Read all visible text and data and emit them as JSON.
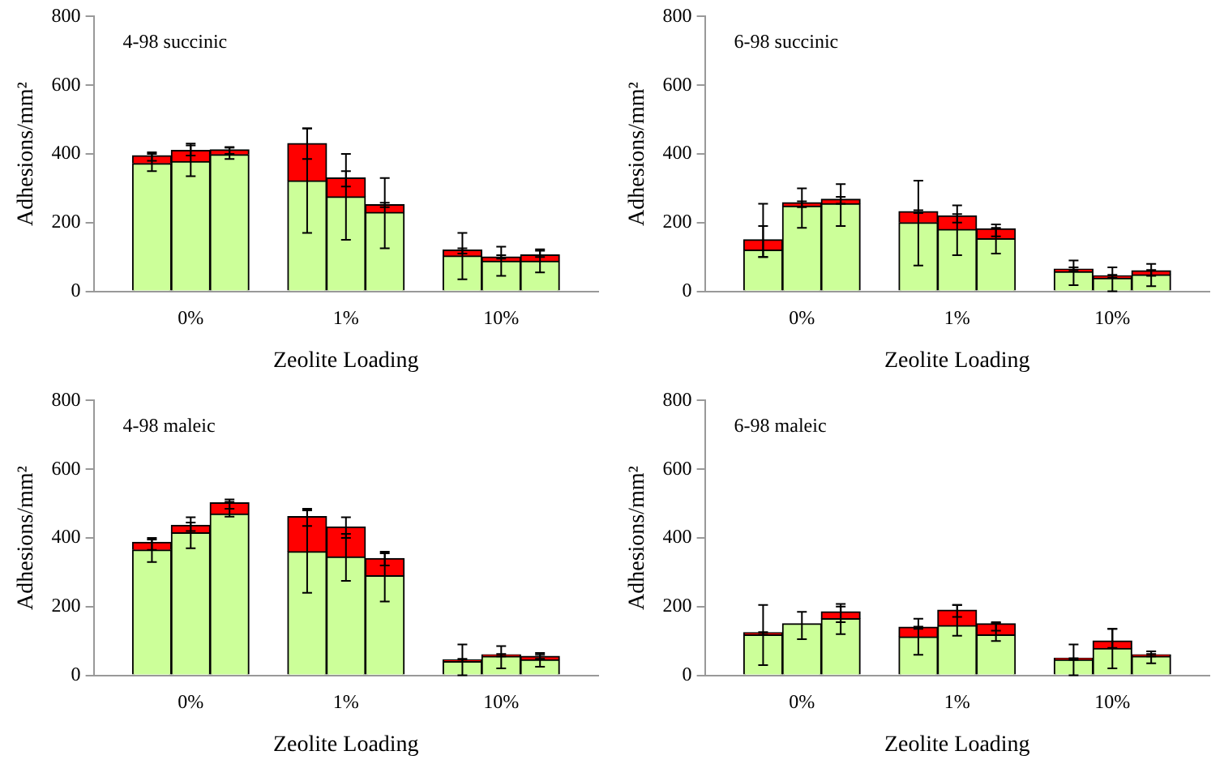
{
  "chart_data": [
    {
      "type": "bar",
      "title": "4-98 succinic",
      "xlabel": "Zeolite Loading",
      "ylabel": "Adhesions/mm²",
      "categories": [
        null,
        null,
        "0%",
        null,
        null,
        null,
        "1%",
        null,
        null,
        null,
        "10%",
        null,
        null
      ],
      "stacked": true,
      "ylim": [
        0,
        800
      ],
      "yticks": [
        0,
        200,
        400,
        600,
        800
      ],
      "series": [
        {
          "color": "#ccff99",
          "values": [
            null,
            372,
            378,
            398,
            null,
            322,
            275,
            230,
            null,
            103,
            88,
            88,
            null
          ],
          "errors": [
            null,
            [
              350,
              400
            ],
            [
              335,
              430
            ],
            [
              385,
              420
            ],
            null,
            [
              170,
              474
            ],
            [
              150,
              400
            ],
            [
              125,
              330
            ],
            null,
            [
              35,
              170
            ],
            [
              45,
              130
            ],
            [
              55,
              122
            ],
            null
          ]
        },
        {
          "color": "#ff0000",
          "values": [
            null,
            23,
            32,
            14,
            null,
            108,
            55,
            22,
            null,
            17,
            12,
            18,
            null
          ],
          "errors": [
            null,
            [
              380,
              405
            ],
            [
              395,
              425
            ],
            [
              400,
              418
            ],
            null,
            [
              385,
              474
            ],
            [
              305,
              350
            ],
            [
              245,
              258
            ],
            null,
            [
              110,
              125
            ],
            [
              95,
              105
            ],
            [
              100,
              118
            ],
            null
          ]
        }
      ]
    },
    {
      "type": "bar",
      "title": "6-98 succinic",
      "xlabel": "Zeolite Loading",
      "ylabel": "Adhesions/mm²",
      "categories": [
        null,
        null,
        "0%",
        null,
        null,
        null,
        "1%",
        null,
        null,
        null,
        "10%",
        null,
        null
      ],
      "stacked": true,
      "ylim": [
        0,
        800
      ],
      "yticks": [
        0,
        200,
        400,
        600,
        800
      ],
      "series": [
        {
          "color": "#ccff99",
          "values": [
            null,
            120,
            248,
            255,
            null,
            200,
            180,
            153,
            null,
            57,
            38,
            48,
            null
          ],
          "errors": [
            null,
            [
              100,
              190
            ],
            [
              185,
              300
            ],
            [
              190,
              312
            ],
            null,
            [
              75,
              322
            ],
            [
              105,
              250
            ],
            [
              110,
              195
            ],
            null,
            [
              18,
              90
            ],
            [
              0,
              70
            ],
            [
              15,
              80
            ],
            null
          ]
        },
        {
          "color": "#ff0000",
          "values": [
            null,
            30,
            10,
            13,
            null,
            32,
            40,
            29,
            null,
            8,
            7,
            12,
            null
          ],
          "errors": [
            null,
            [
              100,
              255
            ],
            [
              245,
              262
            ],
            [
              255,
              275
            ],
            null,
            [
              228,
              236
            ],
            [
              200,
              225
            ],
            [
              160,
              185
            ],
            null,
            [
              60,
              70
            ],
            [
              40,
              48
            ],
            [
              45,
              62
            ],
            null
          ]
        }
      ]
    },
    {
      "type": "bar",
      "title": "4-98 maleic",
      "xlabel": "Zeolite Loading",
      "ylabel": "Adhesions/mm²",
      "categories": [
        null,
        null,
        "0%",
        null,
        null,
        null,
        "1%",
        null,
        null,
        null,
        "10%",
        null,
        null
      ],
      "stacked": true,
      "ylim": [
        0,
        800
      ],
      "yticks": [
        0,
        200,
        400,
        600,
        800
      ],
      "series": [
        {
          "color": "#ccff99",
          "values": [
            null,
            365,
            415,
            470,
            null,
            360,
            345,
            290,
            null,
            40,
            55,
            45,
            null
          ],
          "errors": [
            null,
            [
              330,
              400
            ],
            [
              370,
              460
            ],
            [
              462,
              512
            ],
            null,
            [
              240,
              485
            ],
            [
              275,
              460
            ],
            [
              215,
              360
            ],
            null,
            [
              0,
              90
            ],
            [
              20,
              85
            ],
            [
              25,
              65
            ],
            null
          ]
        },
        {
          "color": "#ff0000",
          "values": [
            null,
            22,
            22,
            32,
            null,
            102,
            87,
            50,
            null,
            5,
            5,
            10,
            null
          ],
          "errors": [
            null,
            [
              365,
              395
            ],
            [
              420,
              445
            ],
            [
              485,
              505
            ],
            null,
            [
              435,
              480
            ],
            [
              400,
              412
            ],
            [
              320,
              355
            ],
            null,
            [
              40,
              48
            ],
            [
              55,
              62
            ],
            [
              48,
              60
            ],
            null
          ]
        }
      ]
    },
    {
      "type": "bar",
      "title": "6-98 maleic",
      "xlabel": "Zeolite Loading",
      "ylabel": "Adhesions/mm²",
      "categories": [
        null,
        null,
        "0%",
        null,
        null,
        null,
        "1%",
        null,
        null,
        null,
        "10%",
        null,
        null
      ],
      "stacked": true,
      "ylim": [
        0,
        800
      ],
      "yticks": [
        0,
        200,
        400,
        600,
        800
      ],
      "series": [
        {
          "color": "#ccff99",
          "values": [
            null,
            118,
            150,
            165,
            null,
            112,
            145,
            118,
            null,
            45,
            78,
            55,
            null
          ],
          "errors": [
            null,
            [
              30,
              205
            ],
            [
              105,
              185
            ],
            [
              120,
              208
            ],
            null,
            [
              60,
              165
            ],
            [
              115,
              205
            ],
            [
              100,
              155
            ],
            null,
            [
              0,
              90
            ],
            [
              20,
              135
            ],
            [
              35,
              70
            ],
            null
          ]
        },
        {
          "color": "#ff0000",
          "values": [
            null,
            6,
            null,
            20,
            null,
            28,
            45,
            32,
            null,
            5,
            22,
            5,
            null
          ],
          "errors": [
            null,
            [
              118,
              126
            ],
            null,
            [
              155,
              200
            ],
            null,
            [
              135,
              142
            ],
            [
              170,
              205
            ],
            [
              130,
              152
            ],
            null,
            [
              45,
              50
            ],
            [
              80,
              135
            ],
            [
              55,
              62
            ],
            null
          ]
        }
      ]
    }
  ]
}
